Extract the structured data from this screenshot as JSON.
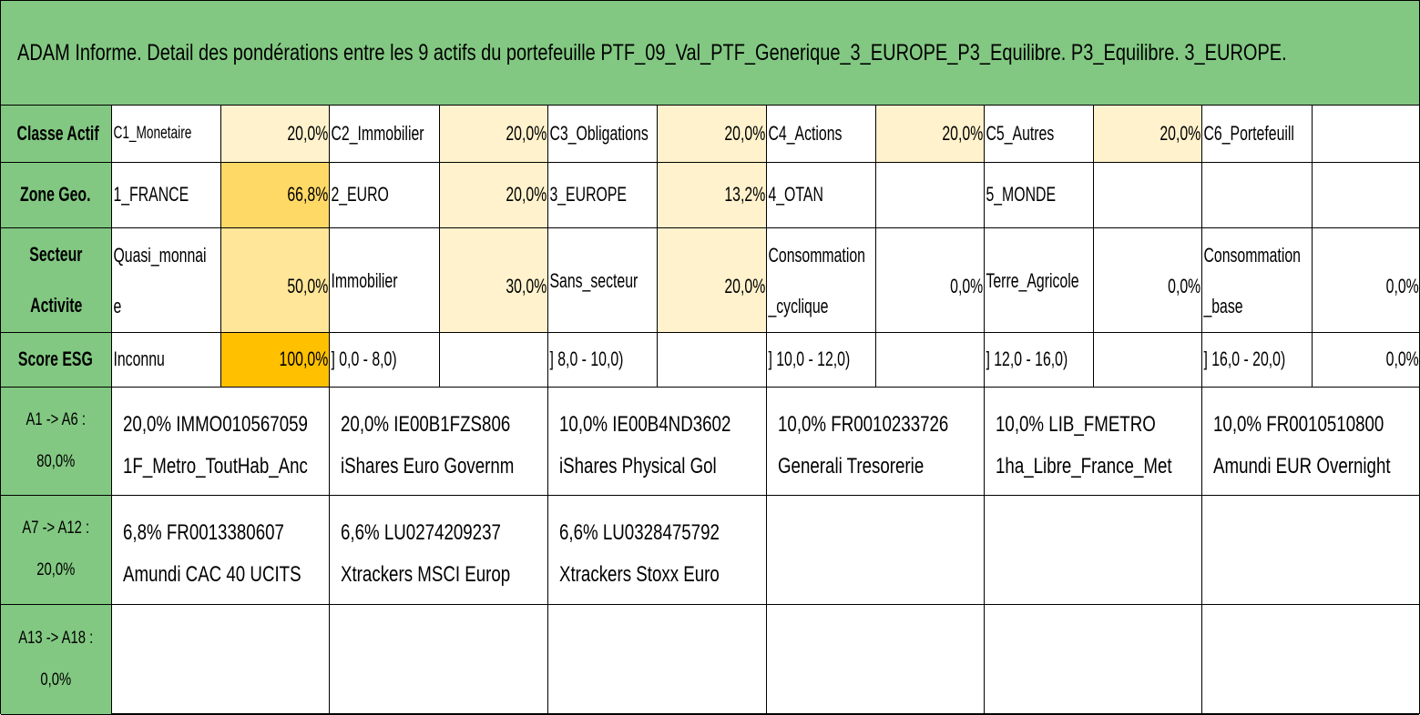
{
  "title": "ADAM Informe. Detail des pondérations entre les 9 actifs du portefeuille PTF_09_Val_PTF_Generique_3_EUROPE_P3_Equilibre. P3_Equilibre. 3_EUROPE.",
  "colors": {
    "header_green": "#82c882",
    "light": "#fff2cc",
    "mid": "#ffe699",
    "strong": "#ffd966",
    "full": "#ffc000"
  },
  "classe_actif": {
    "label": "Classe Actif",
    "items": [
      {
        "name": "C1_Monetaire",
        "pct": "20,0%"
      },
      {
        "name": "C2_Immobilier",
        "pct": "20,0%"
      },
      {
        "name": "C3_Obligations",
        "pct": "20,0%"
      },
      {
        "name": "C4_Actions",
        "pct": "20,0%"
      },
      {
        "name": "C5_Autres",
        "pct": "20,0%"
      },
      {
        "name": "C6_Portefeuill",
        "pct": ""
      }
    ]
  },
  "zone_geo": {
    "label": "Zone Geo.",
    "items": [
      {
        "name": "1_FRANCE",
        "pct": "66,8%"
      },
      {
        "name": "2_EURO",
        "pct": "20,0%"
      },
      {
        "name": "3_EUROPE",
        "pct": "13,2%"
      },
      {
        "name": "4_OTAN",
        "pct": ""
      },
      {
        "name": "5_MONDE",
        "pct": ""
      },
      {
        "name": "",
        "pct": ""
      }
    ]
  },
  "secteur": {
    "label_line1": "Secteur",
    "label_line2": "Activite",
    "items": [
      {
        "name": "Quasi_monnaie",
        "pct": "50,0%"
      },
      {
        "name": "Immobilier",
        "pct": "30,0%"
      },
      {
        "name": "Sans_secteur",
        "pct": "20,0%"
      },
      {
        "name": "Consommation_cyclique",
        "pct": "0,0%"
      },
      {
        "name": "Terre_Agricole",
        "pct": "0,0%"
      },
      {
        "name": "Consommation_base",
        "pct": "0,0%"
      }
    ]
  },
  "score_esg": {
    "label": "Score ESG",
    "items": [
      {
        "name": "Inconnu",
        "pct": "100,0%"
      },
      {
        "name": "] 0,0 - 8,0)",
        "pct": ""
      },
      {
        "name": "] 8,0 - 10,0)",
        "pct": ""
      },
      {
        "name": "] 10,0 - 12,0)",
        "pct": ""
      },
      {
        "name": "] 12,0 - 16,0)",
        "pct": ""
      },
      {
        "name": "] 16,0 - 20,0)",
        "pct": "0,0%"
      }
    ]
  },
  "asset_groups": [
    {
      "label_line1": "A1 -> A6 :",
      "label_line2": "80,0%",
      "assets": [
        {
          "line1": "20,0% IMMO010567059",
          "line2": "1F_Metro_ToutHab_Anc"
        },
        {
          "line1": "20,0% IE00B1FZS806",
          "line2": "iShares Euro Governm"
        },
        {
          "line1": "10,0% IE00B4ND3602",
          "line2": "iShares Physical Gol"
        },
        {
          "line1": "10,0% FR0010233726",
          "line2": "Generali Tresorerie"
        },
        {
          "line1": "10,0% LIB_FMETRO",
          "line2": "1ha_Libre_France_Met"
        },
        {
          "line1": "10,0% FR0010510800",
          "line2": "Amundi EUR Overnight"
        }
      ]
    },
    {
      "label_line1": "A7 -> A12 :",
      "label_line2": "20,0%",
      "assets": [
        {
          "line1": "6,8% FR0013380607",
          "line2": "Amundi CAC 40 UCITS"
        },
        {
          "line1": "6,6% LU0274209237",
          "line2": "Xtrackers MSCI Europ"
        },
        {
          "line1": "6,6% LU0328475792",
          "line2": "Xtrackers Stoxx Euro"
        },
        {
          "line1": "",
          "line2": ""
        },
        {
          "line1": "",
          "line2": ""
        },
        {
          "line1": "",
          "line2": ""
        }
      ]
    },
    {
      "label_line1": "A13 -> A18 :",
      "label_line2": "0,0%",
      "assets": [
        {
          "line1": "",
          "line2": ""
        },
        {
          "line1": "",
          "line2": ""
        },
        {
          "line1": "",
          "line2": ""
        },
        {
          "line1": "",
          "line2": ""
        },
        {
          "line1": "",
          "line2": ""
        },
        {
          "line1": "",
          "line2": ""
        }
      ]
    }
  ]
}
